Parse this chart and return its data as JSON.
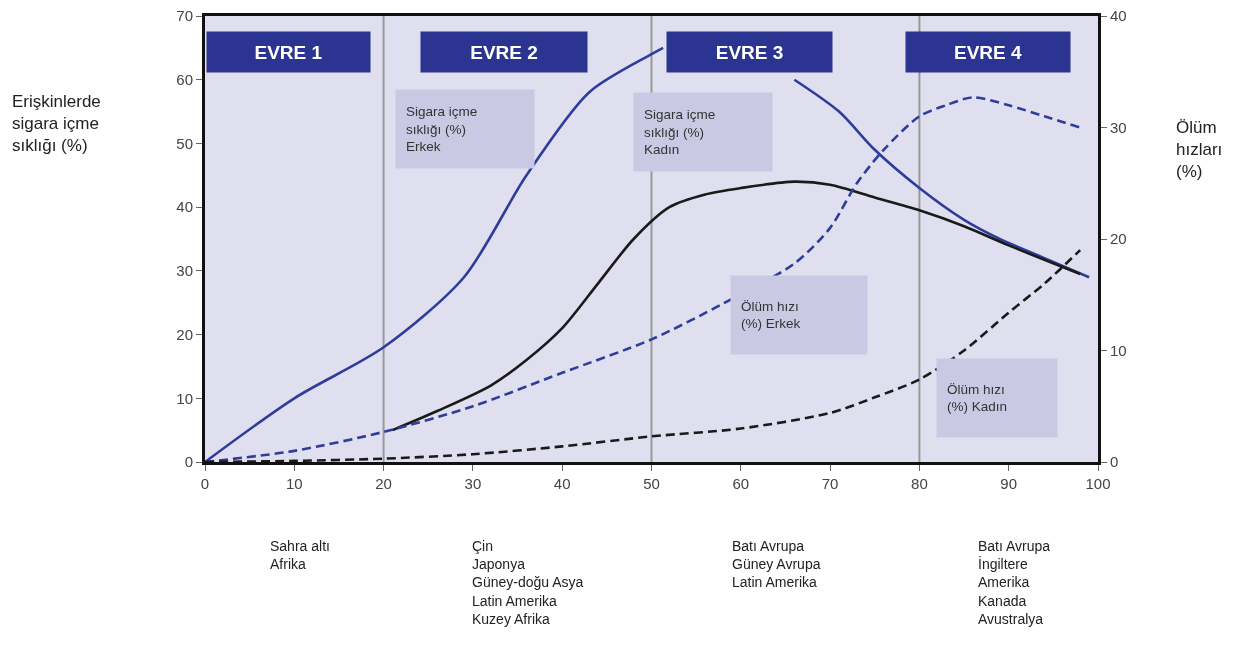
{
  "chart_data": {
    "type": "line",
    "ylabel": "Erişkinlerde\nsigara içme\nsıklığı (%)",
    "y2label": "Ölüm\nhızları\n(%)",
    "xlim": [
      0,
      100
    ],
    "xticks": [
      0,
      10,
      20,
      30,
      40,
      50,
      60,
      70,
      80,
      90,
      100
    ],
    "ylim": [
      0,
      70
    ],
    "yticks": [
      0,
      10,
      20,
      30,
      40,
      50,
      60,
      70
    ],
    "y2lim": [
      0,
      40
    ],
    "y2ticks": [
      0,
      10,
      20,
      30,
      40
    ],
    "grid": false,
    "marker": "none",
    "series": [
      {
        "color": "#2e3d9a",
        "line_style": "solid",
        "x": [
          0,
          10,
          20,
          29,
          36,
          43,
          50,
          51.3,
          61,
          66,
          71,
          75,
          80,
          85,
          89,
          94,
          99
        ],
        "values": [
          0,
          10,
          18,
          29,
          45,
          58,
          64,
          65,
          null,
          60,
          55,
          49,
          43,
          38,
          35,
          32,
          29
        ]
      },
      {
        "color": "#1a1a1a",
        "line_style": "solid",
        "x": [
          21,
          26,
          32,
          36,
          40,
          44,
          48,
          52,
          56,
          60,
          66,
          70,
          75,
          80,
          85,
          90,
          98
        ],
        "values": [
          5,
          8,
          12,
          16,
          21,
          28,
          35,
          40,
          42,
          43,
          44,
          43.5,
          41.5,
          39.5,
          37,
          34,
          29.5
        ]
      },
      {
        "color": "#2e3d9a",
        "line_style": "dashed",
        "axis": "y2",
        "x": [
          0,
          10,
          20,
          30,
          40,
          50,
          58,
          66,
          70,
          73,
          76,
          80,
          83,
          86,
          90,
          94,
          98
        ],
        "values": [
          0,
          1,
          2.7,
          5,
          8,
          11,
          14.2,
          17.8,
          21,
          25,
          28,
          31,
          32,
          32.7,
          32,
          31,
          30
        ]
      },
      {
        "color": "#1a1a1a",
        "line_style": "dashed",
        "axis": "y2",
        "x": [
          0,
          10,
          20,
          30,
          40,
          50,
          60,
          70,
          75,
          80,
          85,
          90,
          94,
          98
        ],
        "values": [
          0,
          0.1,
          0.3,
          0.7,
          1.4,
          2.3,
          3,
          4.4,
          5.8,
          7.4,
          10,
          13.4,
          16,
          19
        ]
      }
    ],
    "ref_lines": [
      {
        "axis": "x",
        "value": 20,
        "color": "#999999"
      },
      {
        "axis": "x",
        "value": 50,
        "color": "#999999"
      },
      {
        "axis": "x",
        "value": 80,
        "color": "#999999"
      }
    ],
    "annotations": [
      "EVRE 1",
      "EVRE 2",
      "EVRE 3",
      "EVRE 4",
      "Sigara içme\nsıklığı (%)\nErkek",
      "Sigara içme\nsıklığı (%)\nKadın",
      "Ölüm hızı\n(%) Erkek",
      "Ölüm hızı\n(%) Kadın",
      "Sahra altı\nAfrika",
      "Çin\nJaponya\nGüney-doğu Asya\nLatin Amerika\nKuzey Afrika",
      "Batı Avrupa\nGüney Avrupa\nLatin Amerika",
      "Batı Avrupa\nİngiltere\nAmerika\nKanada\nAvustralya"
    ]
  }
}
